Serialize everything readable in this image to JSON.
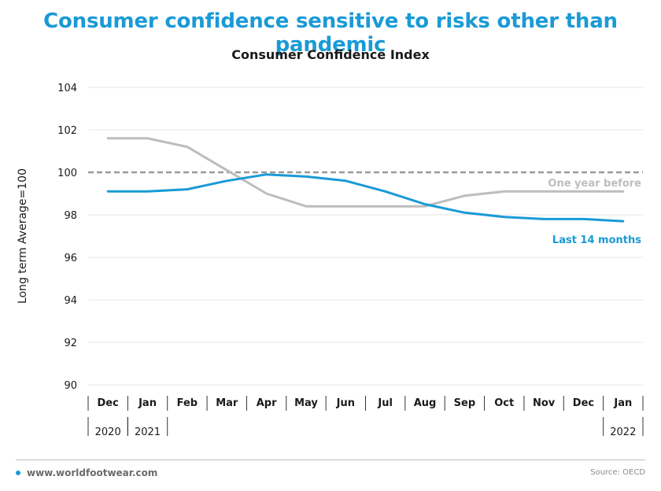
{
  "headline": "Consumer confidence sensitive to risks other than pandemic",
  "footer": {
    "site": "www.worldfootwear.com",
    "source": "Source: OECD"
  },
  "colors": {
    "accent": "#1a9ad6",
    "previous": "#bdbdbd",
    "reference": "#999999"
  },
  "chart_data": {
    "type": "line",
    "title": "Consumer Confidence Index",
    "xlabel": "",
    "ylabel": "Long term Average=100",
    "ylim": [
      90,
      104
    ],
    "yticks": [
      90,
      92,
      94,
      96,
      98,
      100,
      102,
      104
    ],
    "grid": true,
    "categories": [
      "Dec",
      "Jan",
      "Feb",
      "Mar",
      "Apr",
      "May",
      "Jun",
      "Jul",
      "Aug",
      "Sep",
      "Oct",
      "Nov",
      "Dec",
      "Jan"
    ],
    "year_labels": [
      {
        "index": 0,
        "label": "2020"
      },
      {
        "index": 1,
        "label": "2021"
      },
      {
        "index": 13,
        "label": "2022"
      }
    ],
    "reference_line": 100,
    "series": [
      {
        "name": "One year before",
        "color": "#bdbdbd",
        "values": [
          101.6,
          101.6,
          101.2,
          100.1,
          99.0,
          98.4,
          98.4,
          98.4,
          98.4,
          98.9,
          99.1,
          99.1,
          99.1,
          99.1
        ]
      },
      {
        "name": "Last 14 months",
        "color": "#1a9ad6",
        "values": [
          99.1,
          99.1,
          99.2,
          99.6,
          99.9,
          99.8,
          99.6,
          99.1,
          98.5,
          98.1,
          97.9,
          97.8,
          97.8,
          97.7
        ]
      }
    ]
  }
}
